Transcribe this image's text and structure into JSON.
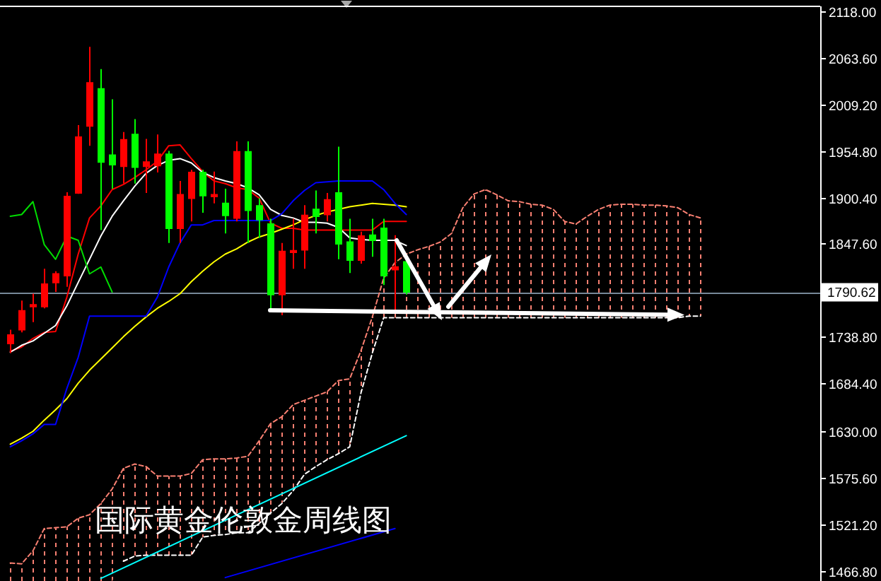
{
  "chart_data": {
    "type": "candlestick",
    "title": "国际黄金伦敦金周线图",
    "categories": [
      null,
      null,
      null,
      null,
      null,
      null,
      null,
      null,
      null,
      null,
      null,
      null,
      null,
      null,
      null,
      null,
      null,
      null,
      null,
      null,
      null,
      null,
      null,
      null,
      null,
      null,
      null,
      null,
      null,
      null,
      null,
      null,
      null,
      null,
      null,
      null,
      null,
      null,
      null,
      null,
      null,
      null,
      null,
      null,
      null,
      null,
      null,
      null,
      null,
      null,
      null,
      null,
      null,
      null,
      null,
      null,
      null,
      null,
      null,
      null,
      null,
      null
    ],
    "ohlc": [
      [
        1731,
        1747,
        1720,
        1741
      ],
      [
        1747,
        1781,
        1744,
        1769
      ],
      [
        1774,
        1789,
        1756,
        1776
      ],
      [
        1774,
        1818,
        1772,
        1800
      ],
      [
        1802,
        1815,
        1791,
        1812
      ],
      [
        1810,
        1907,
        1797,
        1902
      ],
      [
        1906,
        1985,
        1905,
        1971
      ],
      [
        1984,
        2076,
        1961,
        2034
      ],
      [
        2027,
        2050,
        1863,
        1942
      ],
      [
        1950,
        2015,
        1911,
        1939
      ],
      [
        1937,
        1977,
        1917,
        1968
      ],
      [
        1974,
        1992,
        1917,
        1936
      ],
      [
        1937,
        1969,
        1906,
        1942
      ],
      [
        1938,
        1974,
        1930,
        1951
      ],
      [
        1951,
        1955,
        1848,
        1865
      ],
      [
        1865,
        1920,
        1848,
        1904
      ],
      [
        1900,
        1933,
        1873,
        1930
      ],
      [
        1930,
        1933,
        1883,
        1903
      ],
      [
        1902,
        1931,
        1894,
        1904
      ],
      [
        1894,
        1911,
        1859,
        1880
      ],
      [
        1877,
        1966,
        1873,
        1954
      ],
      [
        1954,
        1966,
        1848,
        1886
      ],
      [
        1891,
        1900,
        1854,
        1875
      ],
      [
        1870,
        1876,
        1772,
        1788
      ],
      [
        1788,
        1848,
        1764,
        1838
      ],
      [
        1837,
        1876,
        1818,
        1839
      ],
      [
        1840,
        1892,
        1818,
        1880
      ],
      [
        1887,
        1909,
        1859,
        1879
      ],
      [
        1881,
        1906,
        1873,
        1898
      ],
      [
        1906,
        1960,
        1829,
        1847
      ],
      [
        1849,
        1876,
        1813,
        1828
      ],
      [
        1828,
        1861,
        1824,
        1856
      ],
      [
        1857,
        1876,
        1832,
        1851
      ],
      [
        1865,
        1876,
        1799,
        1810
      ],
      [
        1817,
        1857,
        1769,
        1820
      ],
      [
        1826,
        1829,
        1788,
        1791
      ],
      null,
      null,
      null,
      null,
      null,
      null,
      null,
      null,
      null,
      null,
      null,
      null,
      null,
      null,
      null,
      null,
      null,
      null,
      null,
      null,
      null,
      null,
      null,
      null,
      null,
      null
    ],
    "colors": [
      "#ff0000",
      "#ff0000",
      "#ff0000",
      "#ff0000",
      "#ff0000",
      "#ff0000",
      "#ff0000",
      "#ff0000",
      "#00ff00",
      "#00ff00",
      "#ff0000",
      "#00ff00",
      "#ff0000",
      "#ff0000",
      "#00ff00",
      "#ff0000",
      "#ff0000",
      "#00ff00",
      "#ff0000",
      "#00ff00",
      "#ff0000",
      "#00ff00",
      "#00ff00",
      "#00ff00",
      "#ff0000",
      "#ff0000",
      "#ff0000",
      "#00ff00",
      "#ff0000",
      "#00ff00",
      "#00ff00",
      "#ff0000",
      "#00ff00",
      "#00ff00",
      "#ff0000",
      "#00ff00",
      null,
      null,
      null,
      null,
      null,
      null,
      null,
      null,
      null,
      null,
      null,
      null,
      null,
      null,
      null,
      null,
      null,
      null,
      null,
      null,
      null,
      null,
      null,
      null,
      null,
      null
    ],
    "series": [
      {
        "type": "line",
        "color": "#ff0000",
        "values": [
          1722,
          1727,
          1737,
          1744,
          1745,
          1785,
          1835,
          1877,
          1891,
          1910,
          1916,
          1924,
          1933,
          1943,
          1961,
          1962,
          1946,
          1931,
          1920,
          1917,
          1912,
          1910,
          1900,
          1871,
          1865,
          1865,
          1863,
          1863,
          1863,
          1863,
          1863,
          1863,
          1863,
          1873,
          1873,
          1873,
          null,
          null,
          null,
          null,
          null,
          null,
          null,
          null,
          null,
          null,
          null,
          null,
          null,
          null,
          null,
          null,
          null,
          null,
          null,
          null,
          null,
          null,
          null,
          null,
          null,
          null
        ]
      },
      {
        "type": "line",
        "color": "#ffffff",
        "values": [
          1721,
          1729,
          1734,
          1743,
          1752,
          1775,
          1802,
          1829,
          1856,
          1879,
          1897,
          1914,
          1929,
          1938,
          1944,
          1946,
          1941,
          1930,
          1924,
          1920,
          1917,
          1912,
          1904,
          1887,
          1880,
          1877,
          1872,
          1872,
          1871,
          1866,
          1854,
          1852,
          1851,
          1851,
          1851,
          1845,
          null,
          null,
          null,
          null,
          null,
          null,
          null,
          null,
          null,
          null,
          null,
          null,
          null,
          null,
          null,
          null,
          null,
          null,
          null,
          null,
          null,
          null,
          null,
          null,
          null,
          null
        ]
      },
      {
        "type": "line",
        "color": "#ffff00",
        "values": [
          1614,
          1621,
          1629,
          1642,
          1654,
          1667,
          1685,
          1700,
          1713,
          1726,
          1739,
          1751,
          1762,
          1772,
          1780,
          1789,
          1803,
          1815,
          1826,
          1835,
          1841,
          1849,
          1855,
          1859,
          1864,
          1869,
          1875,
          1880,
          1884,
          1887,
          1890,
          1892,
          1894,
          1893,
          1892,
          1890,
          null,
          null,
          null,
          null,
          null,
          null,
          null,
          null,
          null,
          null,
          null,
          null,
          null,
          null,
          null,
          null,
          null,
          null,
          null,
          null,
          null,
          null,
          null,
          null,
          null,
          null
        ]
      },
      {
        "type": "line",
        "color": "#0000ff",
        "values": [
          1611,
          1618,
          1626,
          1637,
          1637,
          1679,
          1715,
          1763,
          1763,
          1763,
          1763,
          1763,
          1763,
          1785,
          1820,
          1848,
          1869,
          1869,
          1874,
          1874,
          1874,
          1874,
          1874,
          1874,
          1882,
          1897,
          1909,
          1918,
          1919,
          1920,
          1920,
          1920,
          1920,
          1910,
          1894,
          1881,
          null,
          null,
          null,
          null,
          null,
          null,
          null,
          null,
          null,
          null,
          null,
          null,
          null,
          null,
          null,
          null,
          null,
          null,
          null,
          null,
          null,
          null,
          null,
          null,
          null,
          null
        ]
      },
      {
        "type": "line",
        "color": "#00dd00",
        "values": [
          1879,
          1881,
          1896,
          1846,
          1829,
          1856,
          1851,
          1812,
          1820,
          1791,
          null,
          null,
          null,
          null,
          null,
          null,
          null,
          null,
          null,
          null,
          null,
          null,
          null,
          null,
          null,
          null,
          null,
          null,
          null,
          null,
          null,
          null,
          null,
          null,
          null,
          null,
          null,
          null,
          null,
          null,
          null,
          null,
          null,
          null,
          null,
          null,
          null,
          null,
          null,
          null,
          null,
          null,
          null,
          null,
          null,
          null,
          null,
          null,
          null,
          null,
          null,
          null
        ]
      },
      {
        "type": "line",
        "color": "#fa8072",
        "line_style": "dashed",
        "values": [
          1476,
          1475,
          1490,
          1516,
          1517,
          1518,
          1528,
          1532,
          1545,
          1562,
          1586,
          1591,
          1588,
          1577,
          1577,
          1577,
          1580,
          1596,
          1597,
          1597,
          1598,
          1600,
          1618,
          1638,
          1646,
          1660,
          1665,
          1670,
          1675,
          1688,
          1690,
          1723,
          1762,
          1807,
          1825,
          1835,
          1840,
          1844,
          1849,
          1859,
          1889,
          1905,
          1910,
          1904,
          1897,
          1896,
          1893,
          1892,
          1887,
          1873,
          1870,
          1879,
          1887,
          1892,
          1893,
          1893,
          1892,
          1892,
          1891,
          1889,
          1881,
          1877
        ],
        "upper": [
          1476,
          1475,
          1490,
          1516,
          1517,
          1518,
          1528,
          1532,
          1545,
          1562,
          1586,
          1591,
          1588,
          1577,
          1577,
          1577,
          1580,
          1596,
          1597,
          1597,
          1598,
          1600,
          1618,
          1638,
          1646,
          1660,
          1665,
          1670,
          1675,
          1688,
          1690,
          1723,
          1762,
          1807,
          1825,
          1835,
          1840,
          1844,
          1849,
          1859,
          1889,
          1905,
          1910,
          1904,
          1897,
          1896,
          1893,
          1892,
          1887,
          1873,
          1870,
          1879,
          1887,
          1892,
          1893,
          1893,
          1892,
          1892,
          1891,
          1889,
          1881,
          1877
        ],
        "lower": [
          1455,
          1455,
          1455,
          1455,
          1455,
          1455,
          1455,
          1455,
          1455,
          1455,
          1478,
          1484,
          1485,
          1485,
          1485,
          1485,
          1485,
          1506,
          1508,
          1509,
          1511,
          1511,
          1522,
          1534,
          1545,
          1560,
          1579,
          1588,
          1596,
          1603,
          1611,
          1674,
          1720,
          1761,
          1761,
          1761,
          1761,
          1761,
          1761,
          1761,
          1761,
          1761,
          1761,
          1761,
          1761,
          1761,
          1761,
          1761,
          1761,
          1761,
          1761,
          1761,
          1761,
          1761,
          1761,
          1761,
          1761,
          1761,
          1761,
          1761,
          1763,
          1763
        ]
      },
      {
        "type": "line",
        "color": "#ffffff",
        "line_style": "dashed",
        "values": [
          null,
          null,
          null,
          null,
          null,
          null,
          null,
          null,
          null,
          null,
          1478,
          1484,
          1485,
          1485,
          1485,
          1485,
          1485,
          1506,
          1508,
          1509,
          1511,
          1511,
          1522,
          1534,
          1545,
          1560,
          1579,
          1588,
          1596,
          1603,
          1611,
          1674,
          1720,
          1761,
          1761,
          1761,
          1761,
          1761,
          1761,
          1761,
          1761,
          1761,
          1761,
          1761,
          1761,
          1761,
          1761,
          1761,
          1761,
          1761,
          1761,
          1761,
          1761,
          1761,
          1761,
          1761,
          1761,
          1761,
          1761,
          1761,
          1763,
          1763
        ]
      },
      {
        "type": "line",
        "color": "#00ffff",
        "values": [
          null,
          null,
          null,
          null,
          null,
          null,
          null,
          null,
          1458,
          null,
          null,
          null,
          null,
          null,
          null,
          null,
          null,
          null,
          null,
          null,
          null,
          null,
          null,
          null,
          null,
          null,
          null,
          null,
          null,
          null,
          null,
          null,
          null,
          null,
          null,
          1624,
          null,
          null,
          null,
          null,
          null,
          null,
          null,
          null,
          null,
          null,
          null,
          null,
          null,
          null,
          null,
          null,
          null,
          null,
          null,
          null,
          null,
          null,
          null,
          null,
          null,
          null
        ]
      },
      {
        "type": "line",
        "color": "#0000ff",
        "values": [
          null,
          null,
          null,
          null,
          null,
          null,
          null,
          null,
          null,
          null,
          null,
          null,
          null,
          null,
          null,
          null,
          null,
          null,
          null,
          1459,
          null,
          null,
          null,
          null,
          null,
          null,
          null,
          null,
          null,
          null,
          null,
          null,
          null,
          null,
          1516,
          null,
          null,
          null,
          null,
          null,
          null,
          null,
          null,
          null,
          null,
          null,
          null,
          null,
          null,
          null,
          null,
          null,
          null,
          null,
          null,
          null,
          null,
          null,
          null,
          null,
          null,
          null
        ]
      }
    ],
    "ylim": [
      1455,
      2123
    ],
    "yticks": [
      {
        "value": 2118,
        "label": "2118.00"
      },
      {
        "value": 2063.6,
        "label": "2063.60"
      },
      {
        "value": 2009.2,
        "label": "2009.20"
      },
      {
        "value": 1954.8,
        "label": "1954.80"
      },
      {
        "value": 1900.4,
        "label": "1900.40"
      },
      {
        "value": 1847.6,
        "label": "1847.60"
      },
      {
        "value": 1738.8,
        "label": "1738.80"
      },
      {
        "value": 1684.4,
        "label": "1684.40"
      },
      {
        "value": 1630,
        "label": "1630.00"
      },
      {
        "value": 1575.6,
        "label": "1575.60"
      },
      {
        "value": 1521.2,
        "label": "1521.20"
      },
      {
        "value": 1466.8,
        "label": "1466.80"
      }
    ],
    "ref_lines": [
      {
        "axis": "y",
        "value": 1790.62,
        "label": "1790.62",
        "color": "#778899"
      }
    ],
    "tick_labels": "y"
  }
}
